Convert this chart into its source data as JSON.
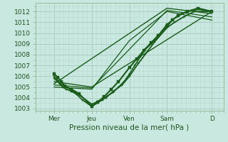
{
  "background_color": "#c8e8e0",
  "grid_major_color": "#a8c8c0",
  "grid_minor_color": "#b8d8d0",
  "line_color": "#1a5c1a",
  "xlim": [
    0,
    5.2
  ],
  "ylim": [
    1002.8,
    1012.8
  ],
  "yticks": [
    1003,
    1004,
    1005,
    1006,
    1007,
    1008,
    1009,
    1010,
    1011,
    1012
  ],
  "xtick_labels": [
    "Mer",
    "Jeu",
    "Ven",
    "Sam",
    "D"
  ],
  "xtick_positions": [
    0.52,
    1.56,
    2.6,
    3.64,
    4.88
  ],
  "xlabel": "Pression niveau de la mer( hPa )",
  "lines": [
    {
      "x": [
        0.52,
        0.6,
        0.68,
        0.75,
        0.85,
        1.0,
        1.15,
        1.3,
        1.56,
        1.7,
        1.85,
        2.0,
        2.15,
        2.3,
        2.45,
        2.6,
        2.75,
        2.9,
        3.05,
        3.2,
        3.35,
        3.5,
        3.64,
        3.78,
        3.9,
        4.05,
        4.2,
        4.5,
        4.88
      ],
      "y": [
        1006.0,
        1005.7,
        1005.3,
        1005.0,
        1004.8,
        1004.6,
        1004.3,
        1003.8,
        1003.2,
        1003.5,
        1003.8,
        1004.2,
        1004.5,
        1005.0,
        1005.5,
        1006.2,
        1007.0,
        1007.8,
        1008.5,
        1009.0,
        1009.5,
        1010.2,
        1010.8,
        1011.2,
        1011.5,
        1011.8,
        1012.0,
        1012.2,
        1012.0
      ],
      "marker": "s",
      "markersize": 2.0,
      "lw": 1.2
    },
    {
      "x": [
        0.52,
        0.65,
        0.8,
        1.0,
        1.2,
        1.56,
        1.75,
        1.95,
        2.15,
        2.4,
        2.6,
        2.85,
        3.1,
        3.3,
        3.64,
        3.85,
        4.1,
        4.4,
        4.88
      ],
      "y": [
        1005.8,
        1005.4,
        1005.1,
        1004.7,
        1004.3,
        1003.4,
        1003.7,
        1004.0,
        1004.6,
        1005.2,
        1006.0,
        1007.2,
        1008.3,
        1009.2,
        1010.5,
        1011.0,
        1011.5,
        1012.0,
        1012.0
      ],
      "marker": "s",
      "markersize": 2.0,
      "lw": 1.3
    },
    {
      "x": [
        0.52,
        1.56,
        4.88
      ],
      "y": [
        1005.5,
        1005.0,
        1012.0
      ],
      "marker": null,
      "markersize": 0,
      "lw": 1.0
    },
    {
      "x": [
        0.52,
        3.64,
        4.88
      ],
      "y": [
        1005.3,
        1012.3,
        1011.8
      ],
      "marker": null,
      "markersize": 0,
      "lw": 1.0
    },
    {
      "x": [
        0.52,
        1.56,
        3.64,
        4.88
      ],
      "y": [
        1005.2,
        1004.9,
        1012.1,
        1011.5
      ],
      "marker": null,
      "markersize": 0,
      "lw": 0.9
    },
    {
      "x": [
        0.52,
        1.56,
        2.6,
        3.64,
        4.88
      ],
      "y": [
        1005.0,
        1004.8,
        1009.3,
        1012.0,
        1011.2
      ],
      "marker": null,
      "markersize": 0,
      "lw": 0.9
    },
    {
      "x": [
        0.52,
        0.62,
        0.72,
        0.82,
        1.0,
        1.2,
        1.56,
        1.72,
        1.9,
        2.1,
        2.3,
        2.6,
        2.8,
        3.0,
        3.2,
        3.4,
        3.64,
        3.78,
        3.95,
        4.2,
        4.5,
        4.88
      ],
      "y": [
        1006.2,
        1005.9,
        1005.5,
        1005.1,
        1004.8,
        1004.4,
        1003.2,
        1003.6,
        1004.1,
        1004.8,
        1005.5,
        1006.8,
        1007.6,
        1008.4,
        1009.1,
        1009.8,
        1010.6,
        1011.2,
        1011.6,
        1012.0,
        1012.3,
        1012.0
      ],
      "marker": "s",
      "markersize": 2.5,
      "lw": 1.5
    }
  ]
}
